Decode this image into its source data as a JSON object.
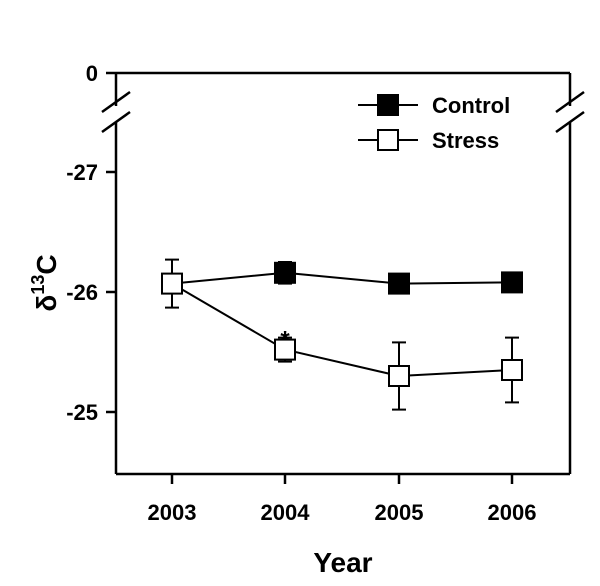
{
  "chart_data": {
    "type": "line",
    "title": "",
    "xlabel": "Year",
    "ylabel": {
      "base": "δ",
      "sup": "13",
      "rest": "C"
    },
    "x": [
      2003,
      2004,
      2005,
      2006
    ],
    "x_tick_labels": [
      "2003",
      "2004",
      "2005",
      "2006"
    ],
    "y_ticks": [
      -27,
      -26,
      -25
    ],
    "y_tick_labels": [
      "-27",
      "-26",
      "-25"
    ],
    "y_break_top_tick": {
      "value": 0,
      "label": "0"
    },
    "ylim": [
      -27.5,
      -24.5
    ],
    "axis_break": true,
    "grid": false,
    "legend_position": "top-right",
    "series": [
      {
        "name": "Control",
        "marker": "filled-square",
        "color": "#000000",
        "values": [
          -26.16,
          -26.07,
          -26.08
        ],
        "x": [
          2004,
          2005,
          2006
        ],
        "errors": [
          0.09,
          0.04,
          0.05
        ]
      },
      {
        "name": "Stress",
        "marker": "open-square",
        "color": "#000000",
        "values": [
          -26.07,
          -25.52,
          -25.3,
          -25.35
        ],
        "x": [
          2003,
          2004,
          2005,
          2006
        ],
        "errors": [
          0.2,
          0.1,
          0.28,
          0.27
        ]
      }
    ],
    "control_2003_hidden_behind_stress": -26.07,
    "annotations": [
      {
        "text": "*",
        "x": 2004,
        "series": "Stress"
      }
    ]
  }
}
